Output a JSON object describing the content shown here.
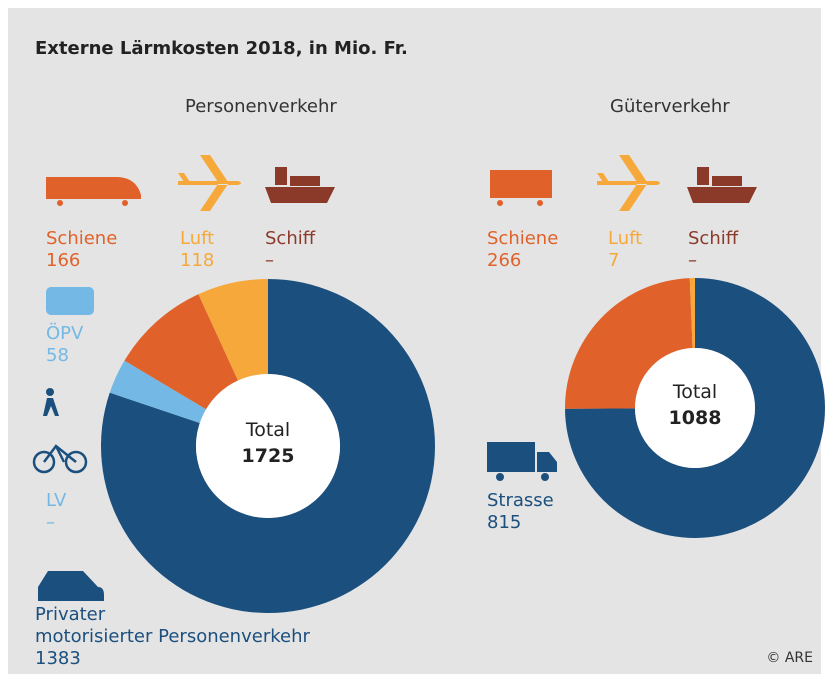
{
  "title": "Externe Lärmkosten 2018, in Mio. Fr.",
  "credit": "© ARE",
  "chart_data": [
    {
      "type": "pie",
      "title": "Personenverkehr",
      "total_label": "Total",
      "total": 1725,
      "categories": [
        "Privater\nmotorisierter Personenverkehr",
        "ÖPV",
        "Schiene",
        "Luft",
        "LV",
        "Schiff"
      ],
      "values": [
        1383,
        58,
        166,
        118,
        null,
        null
      ],
      "value_labels": [
        "1383",
        "58",
        "166",
        "118",
        "–",
        "–"
      ],
      "colors": [
        "#1b4f7e",
        "#74b9e6",
        "#e0622a",
        "#f6a83a",
        "#74b9e6",
        "#8b3a2a"
      ]
    },
    {
      "type": "pie",
      "title": "Güterverkehr",
      "total_label": "Total",
      "total": 1088,
      "categories": [
        "Strasse",
        "Schiene",
        "Luft",
        "Schiff"
      ],
      "values": [
        815,
        266,
        7,
        null
      ],
      "value_labels": [
        "815",
        "266",
        "7",
        "–"
      ],
      "colors": [
        "#1b4f7e",
        "#e0622a",
        "#f6a83a",
        "#8b3a2a"
      ]
    }
  ]
}
